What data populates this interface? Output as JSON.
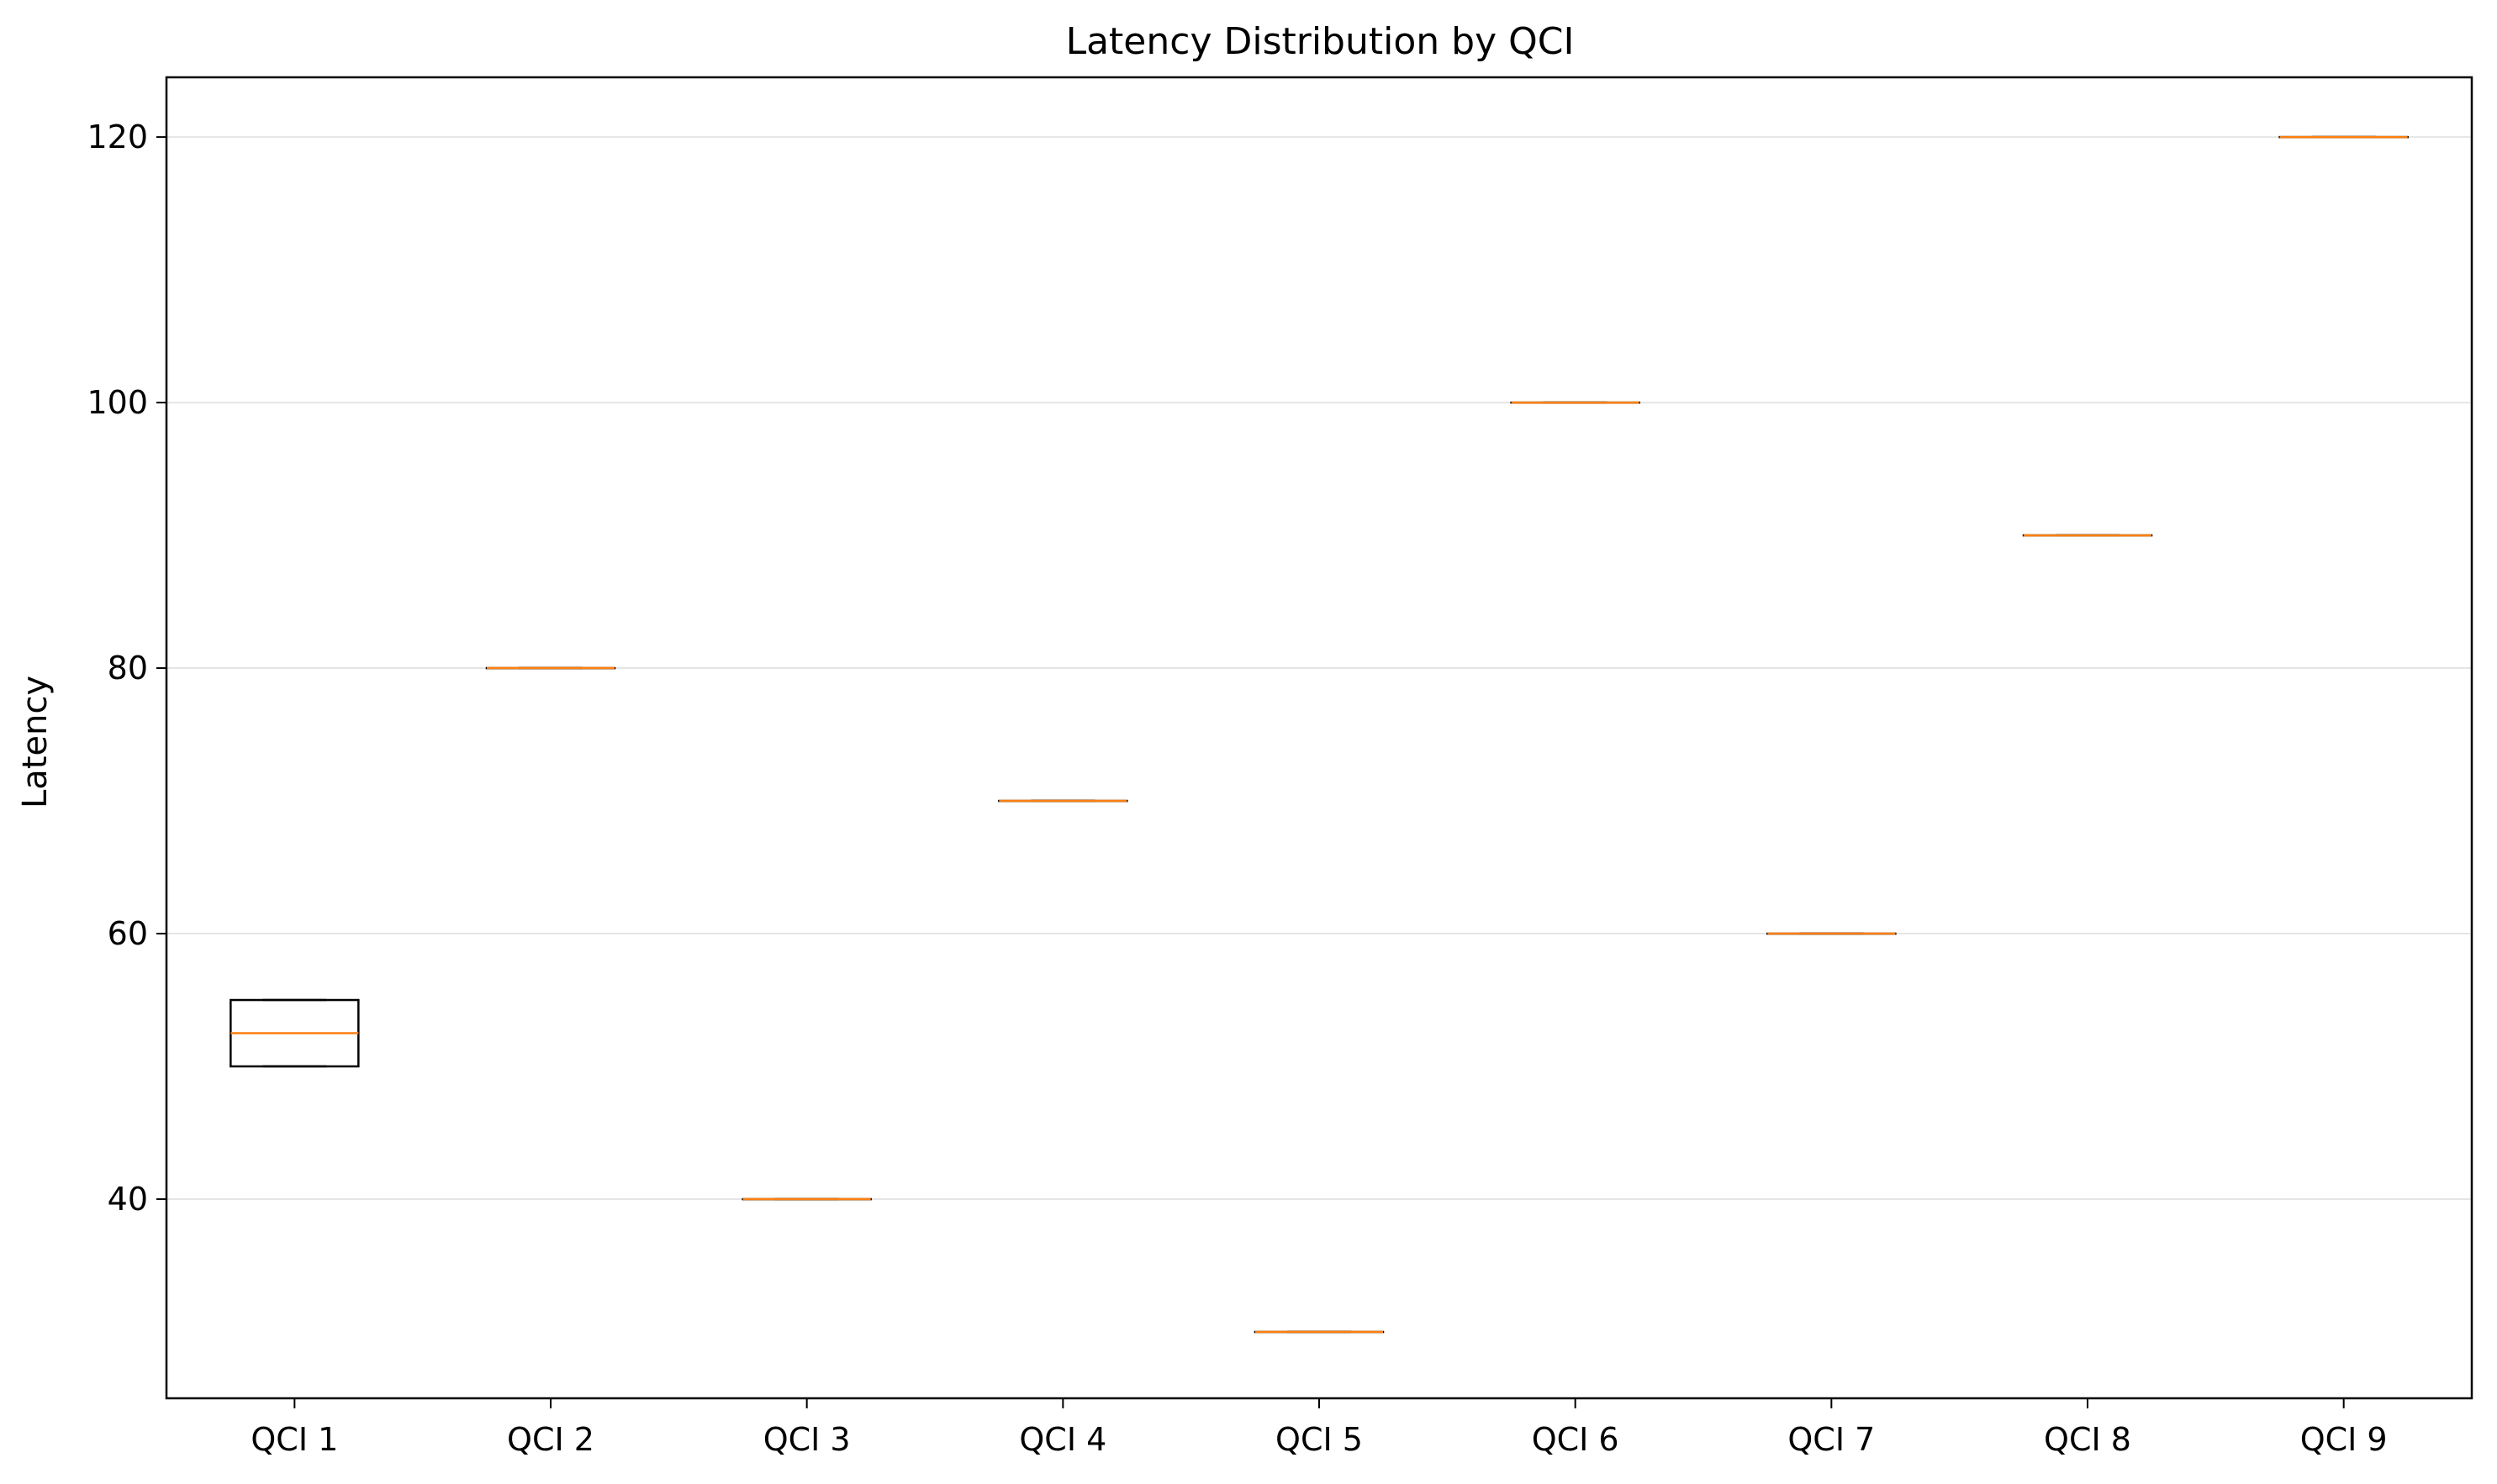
{
  "chart_data": {
    "type": "box",
    "title": "Latency Distribution by QCI",
    "xlabel": "",
    "ylabel": "Latency",
    "ylim": [
      25,
      124.5
    ],
    "yticks": [
      40,
      60,
      80,
      100,
      120
    ],
    "grid": "horizontal",
    "colors": {
      "box": "#000000",
      "median": "#ff7f0e",
      "grid": "#e5e5e5"
    },
    "categories": [
      "QCI 1",
      "QCI 2",
      "QCI 3",
      "QCI 4",
      "QCI 5",
      "QCI 6",
      "QCI 7",
      "QCI 8",
      "QCI 9"
    ],
    "boxes": [
      {
        "category": "QCI 1",
        "min": 50,
        "q1": 50,
        "median": 52.5,
        "q3": 55,
        "max": 55
      },
      {
        "category": "QCI 2",
        "min": 80,
        "q1": 80,
        "median": 80,
        "q3": 80,
        "max": 80
      },
      {
        "category": "QCI 3",
        "min": 40,
        "q1": 40,
        "median": 40,
        "q3": 40,
        "max": 40
      },
      {
        "category": "QCI 4",
        "min": 70,
        "q1": 70,
        "median": 70,
        "q3": 70,
        "max": 70
      },
      {
        "category": "QCI 5",
        "min": 30,
        "q1": 30,
        "median": 30,
        "q3": 30,
        "max": 30
      },
      {
        "category": "QCI 6",
        "min": 100,
        "q1": 100,
        "median": 100,
        "q3": 100,
        "max": 100
      },
      {
        "category": "QCI 7",
        "min": 60,
        "q1": 60,
        "median": 60,
        "q3": 60,
        "max": 60
      },
      {
        "category": "QCI 8",
        "min": 90,
        "q1": 90,
        "median": 90,
        "q3": 90,
        "max": 90
      },
      {
        "category": "QCI 9",
        "min": 120,
        "q1": 120,
        "median": 120,
        "q3": 120,
        "max": 120
      }
    ]
  }
}
